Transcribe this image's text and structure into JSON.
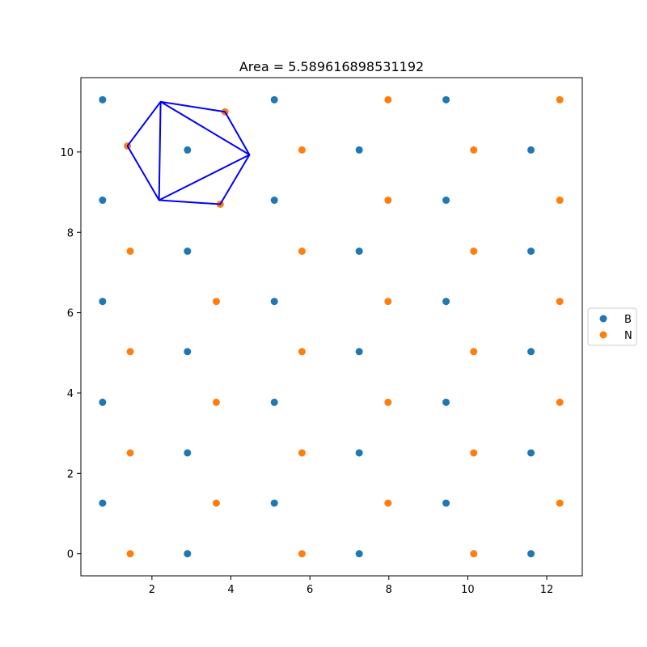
{
  "chart_data": {
    "type": "scatter",
    "title": "Area = 5.589616898531192",
    "xlabel": "",
    "ylabel": "",
    "xlim": [
      0.2,
      12.9
    ],
    "ylim": [
      -0.55,
      11.85
    ],
    "xticks": [
      2,
      4,
      6,
      8,
      10,
      12
    ],
    "yticks": [
      0,
      2,
      4,
      6,
      8,
      10
    ],
    "grid": false,
    "legend_position": "center-right outside",
    "series": [
      {
        "name": "B",
        "color": "#1f77b4",
        "points": [
          [
            0.75,
            11.3
          ],
          [
            5.1,
            11.3
          ],
          [
            9.45,
            11.3
          ],
          [
            2.9,
            10.05
          ],
          [
            7.25,
            10.05
          ],
          [
            11.6,
            10.05
          ],
          [
            0.75,
            8.8
          ],
          [
            5.1,
            8.8
          ],
          [
            9.45,
            8.8
          ],
          [
            2.9,
            7.53
          ],
          [
            7.25,
            7.53
          ],
          [
            11.6,
            7.53
          ],
          [
            0.75,
            6.28
          ],
          [
            5.1,
            6.28
          ],
          [
            9.45,
            6.28
          ],
          [
            2.9,
            5.03
          ],
          [
            7.25,
            5.03
          ],
          [
            11.6,
            5.03
          ],
          [
            0.75,
            3.77
          ],
          [
            5.1,
            3.77
          ],
          [
            9.45,
            3.77
          ],
          [
            2.9,
            2.51
          ],
          [
            7.25,
            2.51
          ],
          [
            11.6,
            2.51
          ],
          [
            0.75,
            1.26
          ],
          [
            5.1,
            1.26
          ],
          [
            9.45,
            1.26
          ],
          [
            2.9,
            0.0
          ],
          [
            7.25,
            0.0
          ],
          [
            11.6,
            0.0
          ]
        ]
      },
      {
        "name": "N",
        "color": "#ff7f0e",
        "points": [
          [
            3.85,
            11.0
          ],
          [
            7.98,
            11.3
          ],
          [
            12.33,
            11.3
          ],
          [
            1.38,
            10.15
          ],
          [
            5.8,
            10.05
          ],
          [
            10.15,
            10.05
          ],
          [
            3.73,
            8.7
          ],
          [
            7.98,
            8.8
          ],
          [
            12.33,
            8.8
          ],
          [
            1.45,
            7.53
          ],
          [
            5.8,
            7.53
          ],
          [
            10.15,
            7.53
          ],
          [
            3.63,
            6.28
          ],
          [
            7.98,
            6.28
          ],
          [
            12.33,
            6.28
          ],
          [
            1.45,
            5.03
          ],
          [
            5.8,
            5.03
          ],
          [
            10.15,
            5.03
          ],
          [
            3.63,
            3.77
          ],
          [
            7.98,
            3.77
          ],
          [
            12.33,
            3.77
          ],
          [
            1.45,
            2.51
          ],
          [
            5.8,
            2.51
          ],
          [
            10.15,
            2.51
          ],
          [
            3.63,
            1.26
          ],
          [
            7.98,
            1.26
          ],
          [
            12.33,
            1.26
          ],
          [
            1.45,
            0.0
          ],
          [
            5.8,
            0.0
          ],
          [
            10.15,
            0.0
          ]
        ]
      }
    ],
    "polygon": {
      "color": "#0000ff",
      "vertices": [
        [
          2.22,
          11.25
        ],
        [
          3.85,
          11.0
        ],
        [
          4.47,
          9.93
        ],
        [
          3.73,
          8.7
        ],
        [
          2.18,
          8.8
        ],
        [
          1.38,
          10.15
        ]
      ],
      "triangulation_edges": [
        [
          [
            2.22,
            11.25
          ],
          [
            2.18,
            8.8
          ]
        ],
        [
          [
            2.22,
            11.25
          ],
          [
            4.47,
            9.93
          ]
        ],
        [
          [
            2.18,
            8.8
          ],
          [
            4.47,
            9.93
          ]
        ]
      ]
    }
  }
}
